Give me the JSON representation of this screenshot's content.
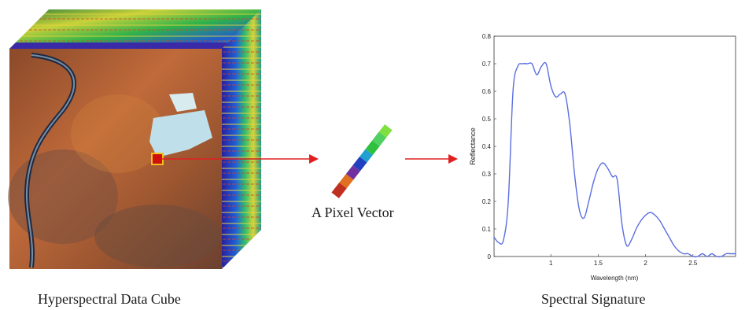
{
  "captions": {
    "cube": "Hyperspectral Data Cube",
    "vector": "A Pixel Vector",
    "signature": "Spectral Signature"
  },
  "colors": {
    "arrow": "#e02020",
    "spectrum_line": "#5a6ee0",
    "pixel_marker": "#d01010",
    "marker_border": "#f0c020"
  },
  "chart_data": {
    "type": "line",
    "title": "",
    "xlabel": "Wavelength (nm)",
    "ylabel": "Reflectance",
    "xlim": [
      0.4,
      2.95
    ],
    "ylim": [
      0,
      0.8
    ],
    "xticks": [
      1,
      1.5,
      2,
      2.5
    ],
    "yticks": [
      0,
      0.1,
      0.2,
      0.3,
      0.4,
      0.5,
      0.6,
      0.7,
      0.8
    ],
    "grid": false,
    "series": [
      {
        "x": [
          0.4,
          0.45,
          0.5,
          0.55,
          0.6,
          0.65,
          0.7,
          0.75,
          0.8,
          0.85,
          0.9,
          0.95,
          1.0,
          1.05,
          1.1,
          1.15,
          1.2,
          1.25,
          1.3,
          1.35,
          1.4,
          1.45,
          1.5,
          1.55,
          1.6,
          1.65,
          1.7,
          1.75,
          1.8,
          1.85,
          1.9,
          1.95,
          2.0,
          2.05,
          2.1,
          2.15,
          2.2,
          2.25,
          2.3,
          2.35,
          2.4,
          2.45,
          2.5,
          2.55,
          2.6,
          2.65,
          2.7,
          2.75,
          2.8,
          2.85,
          2.9,
          2.95
        ],
        "y": [
          0.07,
          0.05,
          0.06,
          0.2,
          0.6,
          0.69,
          0.7,
          0.7,
          0.7,
          0.66,
          0.69,
          0.7,
          0.62,
          0.58,
          0.59,
          0.59,
          0.48,
          0.3,
          0.17,
          0.14,
          0.2,
          0.27,
          0.32,
          0.34,
          0.32,
          0.29,
          0.28,
          0.12,
          0.04,
          0.06,
          0.1,
          0.13,
          0.15,
          0.16,
          0.15,
          0.13,
          0.1,
          0.07,
          0.04,
          0.02,
          0.01,
          0.01,
          0.0,
          0.0,
          0.01,
          0.0,
          0.01,
          0.0,
          0.0,
          0.01,
          0.01,
          0.01
        ]
      }
    ]
  }
}
